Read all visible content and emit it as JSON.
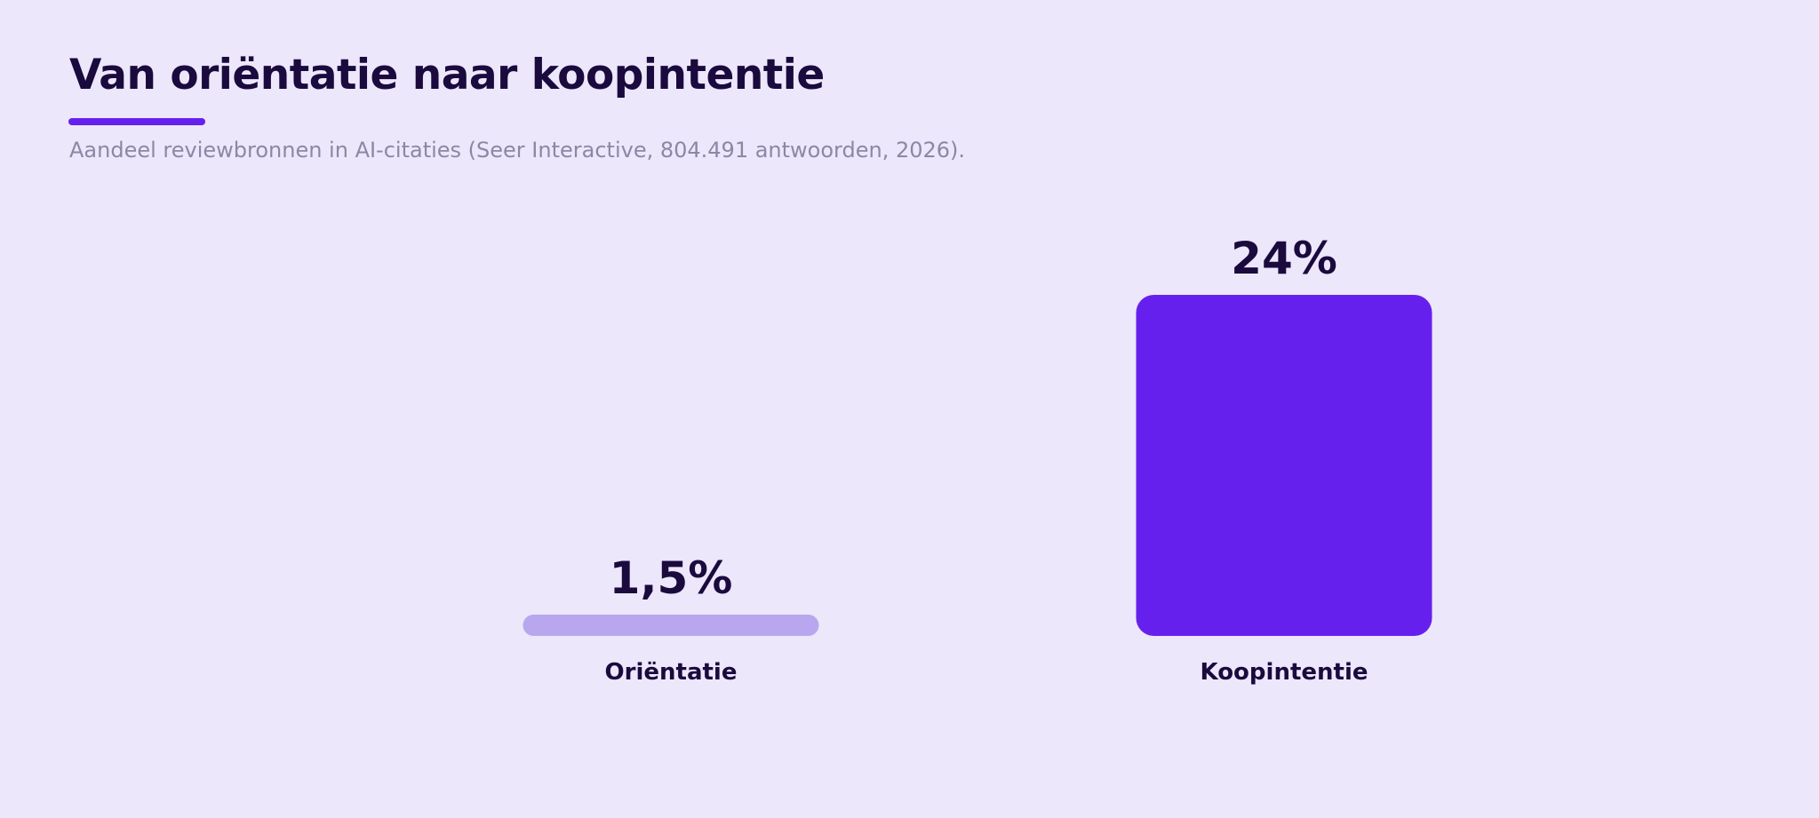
{
  "title": "Van oriëntatie naar koopintentie",
  "subtitle": "Aandeel reviewbronnen in AI-citaties (Seer Interactive, 804.491 antwoorden, 2026).",
  "colors": {
    "background": "#ECE7FA",
    "title": "#1A0A3D",
    "subtitle": "#8D87A5",
    "accent": "#6620EE",
    "bar_light": "#B8A7EE",
    "bar_dark": "#6620EE"
  },
  "chart_data": {
    "type": "bar",
    "categories": [
      "Oriëntatie",
      "Koopintentie"
    ],
    "values": [
      1.5,
      24
    ],
    "data_labels": [
      "1,5%",
      "24%"
    ],
    "bar_colors": [
      "#B8A7EE",
      "#6620EE"
    ],
    "unit": "%",
    "ylim": [
      0,
      24
    ],
    "grid": false,
    "legend": "none"
  }
}
